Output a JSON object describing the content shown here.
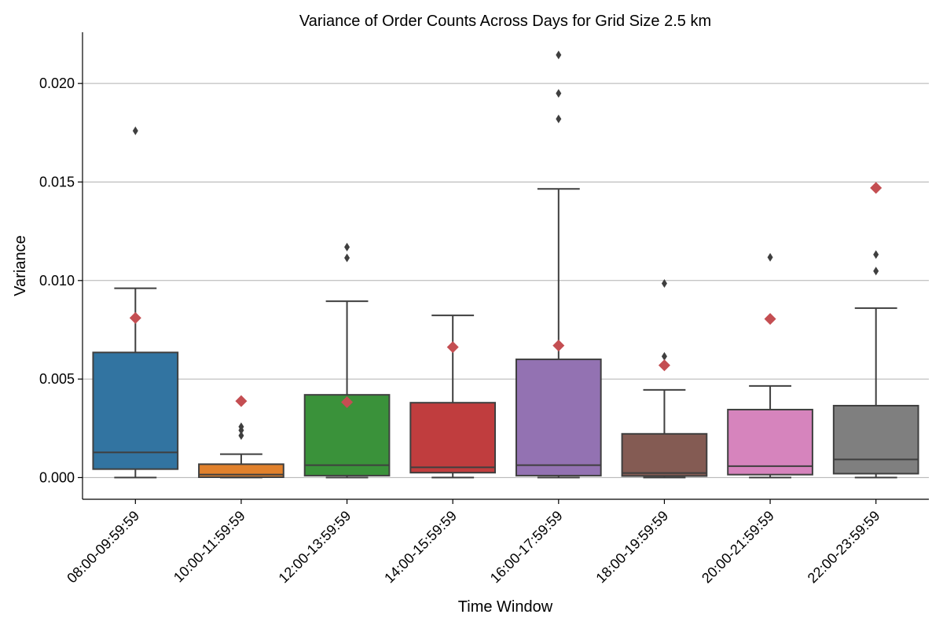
{
  "chart_data": {
    "type": "box",
    "title": "Variance of Order Counts Across Days for Grid Size 2.5 km",
    "xlabel": "Time Window",
    "ylabel": "Variance",
    "ylim": [
      -0.0011,
      0.0226
    ],
    "yticks": [
      0.0,
      0.005,
      0.01,
      0.015,
      0.02
    ],
    "ytick_labels": [
      "0.000",
      "0.005",
      "0.010",
      "0.015",
      "0.020"
    ],
    "grid": "horizontal",
    "mean_marker_color": "#c44e52",
    "categories": [
      "08:00-09:59:59",
      "10:00-11:59:59",
      "12:00-13:59:59",
      "14:00-15:59:59",
      "16:00-17:59:59",
      "18:00-19:59:59",
      "20:00-21:59:59",
      "22:00-23:59:59"
    ],
    "boxes": [
      {
        "color": "#3274a1",
        "whisker_low": 0.0,
        "q1": 0.00043,
        "median": 0.00128,
        "q3": 0.00635,
        "whisker_high": 0.00961,
        "mean": 0.0081,
        "outliers": [
          0.0176
        ]
      },
      {
        "color": "#e1812c",
        "whisker_low": 0.0,
        "q1": 2e-05,
        "median": 0.00015,
        "q3": 0.00068,
        "whisker_high": 0.00119,
        "mean": 0.00388,
        "outliers": [
          0.00213,
          0.0024,
          0.00258
        ]
      },
      {
        "color": "#3a923a",
        "whisker_low": 0.0,
        "q1": 0.0001,
        "median": 0.00063,
        "q3": 0.0042,
        "whisker_high": 0.00895,
        "mean": 0.00383,
        "outliers": [
          0.01115,
          0.0117
        ]
      },
      {
        "color": "#c03d3e",
        "whisker_low": 0.0,
        "q1": 0.00025,
        "median": 0.00052,
        "q3": 0.0038,
        "whisker_high": 0.00823,
        "mean": 0.00662,
        "outliers": []
      },
      {
        "color": "#9372b2",
        "whisker_low": 0.0,
        "q1": 0.0001,
        "median": 0.00063,
        "q3": 0.006,
        "whisker_high": 0.01465,
        "mean": 0.0067,
        "outliers": [
          0.0182,
          0.0195,
          0.02145
        ]
      },
      {
        "color": "#845b53",
        "whisker_low": 0.0,
        "q1": 8e-05,
        "median": 0.00023,
        "q3": 0.00222,
        "whisker_high": 0.00445,
        "mean": 0.0057,
        "outliers": [
          0.00615,
          0.00985
        ]
      },
      {
        "color": "#d684bd",
        "whisker_low": 0.0,
        "q1": 0.00015,
        "median": 0.00058,
        "q3": 0.00345,
        "whisker_high": 0.00465,
        "mean": 0.00805,
        "outliers": [
          0.01118
        ]
      },
      {
        "color": "#7f7f7f",
        "whisker_low": 0.0,
        "q1": 0.0002,
        "median": 0.00092,
        "q3": 0.00365,
        "whisker_high": 0.0086,
        "mean": 0.0147,
        "outliers": [
          0.01048,
          0.01132
        ]
      }
    ]
  }
}
